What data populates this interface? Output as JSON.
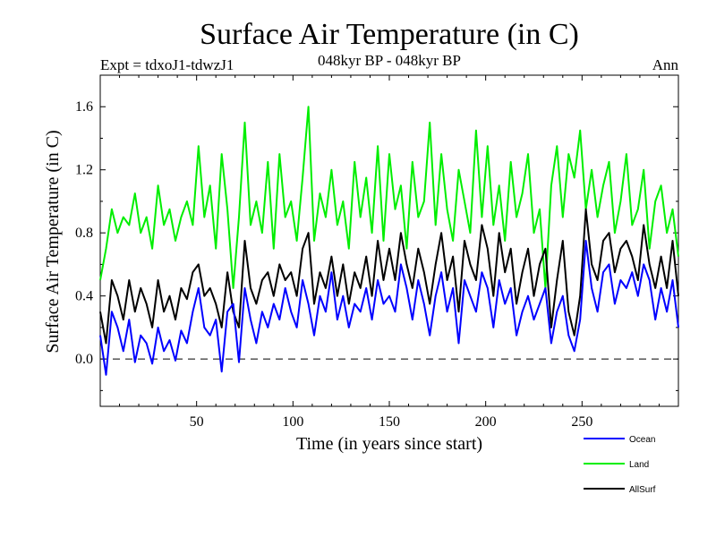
{
  "chart_data": {
    "type": "line",
    "title": "Surface Air Temperature (in C)",
    "subtitle": "048kyr BP - 048kyr BP",
    "experiment": "Expt = tdxoJ1-tdwzJ1",
    "season": "Ann",
    "xlabel": "Time (in years since start)",
    "ylabel": "Surface Air Temperature (in C)",
    "xlim": [
      0,
      300
    ],
    "ylim": [
      -0.3,
      1.8
    ],
    "xticks": [
      50,
      100,
      150,
      200,
      250
    ],
    "xtick_labels": [
      "50",
      "100",
      "150",
      "200",
      "250"
    ],
    "yticks": [
      0.0,
      0.4,
      0.8,
      1.2,
      1.6
    ],
    "ytick_labels": [
      "0.0",
      "0.4",
      "0.8",
      "1.2",
      "1.6"
    ],
    "reference_line": 0.0,
    "legend_position": "bottom-right",
    "series": [
      {
        "name": "Ocean",
        "color": "#0000ff",
        "x": [
          0,
          3,
          6,
          9,
          12,
          15,
          18,
          21,
          24,
          27,
          30,
          33,
          36,
          39,
          42,
          45,
          48,
          51,
          54,
          57,
          60,
          63,
          66,
          69,
          72,
          75,
          78,
          81,
          84,
          87,
          90,
          93,
          96,
          99,
          102,
          105,
          108,
          111,
          114,
          117,
          120,
          123,
          126,
          129,
          132,
          135,
          138,
          141,
          144,
          147,
          150,
          153,
          156,
          159,
          162,
          165,
          168,
          171,
          174,
          177,
          180,
          183,
          186,
          189,
          192,
          195,
          198,
          201,
          204,
          207,
          210,
          213,
          216,
          219,
          222,
          225,
          228,
          231,
          234,
          237,
          240,
          243,
          246,
          249,
          252,
          255,
          258,
          261,
          264,
          267,
          270,
          273,
          276,
          279,
          282,
          285,
          288,
          291,
          294,
          297,
          300
        ],
        "values": [
          0.15,
          -0.1,
          0.3,
          0.2,
          0.05,
          0.25,
          -0.02,
          0.15,
          0.1,
          -0.03,
          0.2,
          0.05,
          0.12,
          -0.01,
          0.18,
          0.1,
          0.3,
          0.45,
          0.2,
          0.15,
          0.25,
          -0.08,
          0.3,
          0.35,
          -0.02,
          0.45,
          0.25,
          0.1,
          0.3,
          0.2,
          0.35,
          0.25,
          0.45,
          0.3,
          0.2,
          0.5,
          0.35,
          0.15,
          0.4,
          0.3,
          0.55,
          0.25,
          0.4,
          0.2,
          0.35,
          0.3,
          0.45,
          0.25,
          0.5,
          0.35,
          0.4,
          0.3,
          0.6,
          0.45,
          0.25,
          0.5,
          0.35,
          0.15,
          0.4,
          0.55,
          0.3,
          0.45,
          0.1,
          0.5,
          0.4,
          0.3,
          0.55,
          0.45,
          0.2,
          0.5,
          0.35,
          0.45,
          0.15,
          0.3,
          0.4,
          0.25,
          0.35,
          0.45,
          0.1,
          0.3,
          0.4,
          0.15,
          0.05,
          0.25,
          0.75,
          0.45,
          0.3,
          0.55,
          0.6,
          0.35,
          0.5,
          0.45,
          0.55,
          0.4,
          0.6,
          0.5,
          0.25,
          0.45,
          0.3,
          0.5,
          0.2
        ]
      },
      {
        "name": "Land",
        "color": "#00ee00",
        "x": [
          0,
          3,
          6,
          9,
          12,
          15,
          18,
          21,
          24,
          27,
          30,
          33,
          36,
          39,
          42,
          45,
          48,
          51,
          54,
          57,
          60,
          63,
          66,
          69,
          72,
          75,
          78,
          81,
          84,
          87,
          90,
          93,
          96,
          99,
          102,
          105,
          108,
          111,
          114,
          117,
          120,
          123,
          126,
          129,
          132,
          135,
          138,
          141,
          144,
          147,
          150,
          153,
          156,
          159,
          162,
          165,
          168,
          171,
          174,
          177,
          180,
          183,
          186,
          189,
          192,
          195,
          198,
          201,
          204,
          207,
          210,
          213,
          216,
          219,
          222,
          225,
          228,
          231,
          234,
          237,
          240,
          243,
          246,
          249,
          252,
          255,
          258,
          261,
          264,
          267,
          270,
          273,
          276,
          279,
          282,
          285,
          288,
          291,
          294,
          297,
          300
        ],
        "values": [
          0.5,
          0.7,
          0.95,
          0.8,
          0.9,
          0.85,
          1.05,
          0.8,
          0.9,
          0.7,
          1.1,
          0.85,
          0.95,
          0.75,
          0.9,
          1.0,
          0.85,
          1.35,
          0.9,
          1.1,
          0.7,
          1.3,
          0.95,
          0.45,
          0.9,
          1.5,
          0.85,
          1.0,
          0.8,
          1.25,
          0.7,
          1.3,
          0.9,
          1.0,
          0.75,
          1.15,
          1.6,
          0.75,
          1.05,
          0.9,
          1.2,
          0.85,
          1.0,
          0.7,
          1.25,
          0.9,
          1.15,
          0.8,
          1.35,
          0.75,
          1.3,
          0.95,
          1.1,
          0.7,
          1.25,
          0.9,
          1.0,
          1.5,
          0.85,
          1.3,
          0.95,
          0.75,
          1.2,
          1.0,
          0.8,
          1.45,
          0.9,
          1.35,
          0.85,
          1.1,
          0.75,
          1.25,
          0.9,
          1.05,
          1.3,
          0.8,
          0.95,
          0.45,
          1.1,
          1.35,
          0.9,
          1.3,
          1.15,
          1.45,
          0.95,
          1.2,
          0.9,
          1.1,
          1.25,
          0.8,
          1.0,
          1.3,
          0.85,
          0.95,
          1.2,
          0.7,
          1.0,
          1.1,
          0.8,
          0.95,
          0.65
        ]
      },
      {
        "name": "AllSurf",
        "color": "#000000",
        "x": [
          0,
          3,
          6,
          9,
          12,
          15,
          18,
          21,
          24,
          27,
          30,
          33,
          36,
          39,
          42,
          45,
          48,
          51,
          54,
          57,
          60,
          63,
          66,
          69,
          72,
          75,
          78,
          81,
          84,
          87,
          90,
          93,
          96,
          99,
          102,
          105,
          108,
          111,
          114,
          117,
          120,
          123,
          126,
          129,
          132,
          135,
          138,
          141,
          144,
          147,
          150,
          153,
          156,
          159,
          162,
          165,
          168,
          171,
          174,
          177,
          180,
          183,
          186,
          189,
          192,
          195,
          198,
          201,
          204,
          207,
          210,
          213,
          216,
          219,
          222,
          225,
          228,
          231,
          234,
          237,
          240,
          243,
          246,
          249,
          252,
          255,
          258,
          261,
          264,
          267,
          270,
          273,
          276,
          279,
          282,
          285,
          288,
          291,
          294,
          297,
          300
        ],
        "values": [
          0.3,
          0.1,
          0.5,
          0.4,
          0.25,
          0.5,
          0.3,
          0.45,
          0.35,
          0.2,
          0.5,
          0.3,
          0.4,
          0.25,
          0.45,
          0.38,
          0.55,
          0.6,
          0.4,
          0.45,
          0.35,
          0.2,
          0.55,
          0.3,
          0.2,
          0.75,
          0.45,
          0.35,
          0.5,
          0.55,
          0.4,
          0.6,
          0.5,
          0.55,
          0.4,
          0.7,
          0.8,
          0.35,
          0.55,
          0.45,
          0.65,
          0.4,
          0.6,
          0.35,
          0.55,
          0.45,
          0.65,
          0.4,
          0.75,
          0.5,
          0.7,
          0.5,
          0.8,
          0.6,
          0.45,
          0.7,
          0.55,
          0.35,
          0.6,
          0.8,
          0.5,
          0.65,
          0.3,
          0.75,
          0.6,
          0.5,
          0.85,
          0.7,
          0.4,
          0.8,
          0.55,
          0.7,
          0.35,
          0.55,
          0.7,
          0.4,
          0.6,
          0.7,
          0.2,
          0.5,
          0.75,
          0.3,
          0.15,
          0.4,
          0.95,
          0.6,
          0.5,
          0.75,
          0.8,
          0.55,
          0.7,
          0.75,
          0.65,
          0.5,
          0.85,
          0.6,
          0.45,
          0.65,
          0.45,
          0.75,
          0.4
        ]
      }
    ]
  }
}
